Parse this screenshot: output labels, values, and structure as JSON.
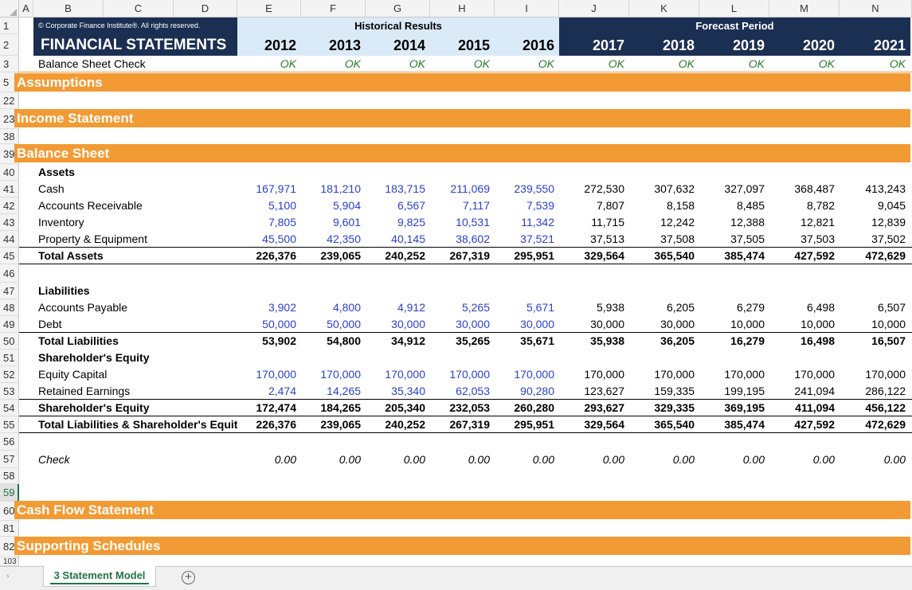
{
  "columns": [
    "A",
    "B",
    "C",
    "D",
    "E",
    "F",
    "G",
    "H",
    "I",
    "J",
    "K",
    "L",
    "M",
    "N"
  ],
  "header": {
    "copyright": "© Corporate Finance Institute®. All rights reserved.",
    "title": "FINANCIAL STATEMENTS",
    "historical_label": "Historical Results",
    "forecast_label": "Forecast Period",
    "years": [
      "2012",
      "2013",
      "2014",
      "2015",
      "2016",
      "2017",
      "2018",
      "2019",
      "2020",
      "2021"
    ]
  },
  "check_row": {
    "label": "Balance Sheet Check",
    "values": [
      "OK",
      "OK",
      "OK",
      "OK",
      "OK",
      "OK",
      "OK",
      "OK",
      "OK",
      "OK"
    ]
  },
  "sections": {
    "assumptions": "Assumptions",
    "income": "Income Statement",
    "balance": "Balance Sheet",
    "cashflow": "Cash Flow Statement",
    "supporting": "Supporting Schedules"
  },
  "row_numbers": {
    "r1": "1",
    "r2": "2",
    "r3": "3",
    "r5": "5",
    "r22": "22",
    "r23": "23",
    "r38": "38",
    "r39": "39",
    "r40": "40",
    "r41": "41",
    "r42": "42",
    "r43": "43",
    "r44": "44",
    "r45": "45",
    "r46": "46",
    "r47": "47",
    "r48": "48",
    "r49": "49",
    "r50": "50",
    "r51": "51",
    "r52": "52",
    "r53": "53",
    "r54": "54",
    "r55": "55",
    "r56": "56",
    "r57": "57",
    "r58": "58",
    "r59": "59",
    "r60": "60",
    "r81": "81",
    "r82": "82",
    "r103": "103"
  },
  "balance_sheet": {
    "assets_label": "Assets",
    "cash": {
      "label": "Cash",
      "values": [
        "167,971",
        "181,210",
        "183,715",
        "211,069",
        "239,550",
        "272,530",
        "307,632",
        "327,097",
        "368,487",
        "413,243"
      ]
    },
    "ar": {
      "label": "Accounts Receivable",
      "values": [
        "5,100",
        "5,904",
        "6,567",
        "7,117",
        "7,539",
        "7,807",
        "8,158",
        "8,485",
        "8,782",
        "9,045"
      ]
    },
    "inventory": {
      "label": "Inventory",
      "values": [
        "7,805",
        "9,601",
        "9,825",
        "10,531",
        "11,342",
        "11,715",
        "12,242",
        "12,388",
        "12,821",
        "12,839"
      ]
    },
    "ppe": {
      "label": "Property & Equipment",
      "values": [
        "45,500",
        "42,350",
        "40,145",
        "38,602",
        "37,521",
        "37,513",
        "37,508",
        "37,505",
        "37,503",
        "37,502"
      ]
    },
    "total_assets": {
      "label": "Total Assets",
      "values": [
        "226,376",
        "239,065",
        "240,252",
        "267,319",
        "295,951",
        "329,564",
        "365,540",
        "385,474",
        "427,592",
        "472,629"
      ]
    },
    "liabilities_label": "Liabilities",
    "ap": {
      "label": "Accounts Payable",
      "values": [
        "3,902",
        "4,800",
        "4,912",
        "5,265",
        "5,671",
        "5,938",
        "6,205",
        "6,279",
        "6,498",
        "6,507"
      ]
    },
    "debt": {
      "label": "Debt",
      "values": [
        "50,000",
        "50,000",
        "30,000",
        "30,000",
        "30,000",
        "30,000",
        "30,000",
        "10,000",
        "10,000",
        "10,000"
      ]
    },
    "total_liabilities": {
      "label": "Total Liabilities",
      "values": [
        "53,902",
        "54,800",
        "34,912",
        "35,265",
        "35,671",
        "35,938",
        "36,205",
        "16,279",
        "16,498",
        "16,507"
      ]
    },
    "equity_label": "Shareholder's Equity",
    "equity_capital": {
      "label": "Equity Capital",
      "values": [
        "170,000",
        "170,000",
        "170,000",
        "170,000",
        "170,000",
        "170,000",
        "170,000",
        "170,000",
        "170,000",
        "170,000"
      ]
    },
    "retained": {
      "label": "Retained Earnings",
      "values": [
        "2,474",
        "14,265",
        "35,340",
        "62,053",
        "90,280",
        "123,627",
        "159,335",
        "199,195",
        "241,094",
        "286,122"
      ]
    },
    "total_equity": {
      "label": "Shareholder's Equity",
      "values": [
        "172,474",
        "184,265",
        "205,340",
        "232,053",
        "260,280",
        "293,627",
        "329,335",
        "369,195",
        "411,094",
        "456,122"
      ]
    },
    "total_le": {
      "label": "Total Liabilities & Shareholder's Equity",
      "values": [
        "226,376",
        "239,065",
        "240,252",
        "267,319",
        "295,951",
        "329,564",
        "365,540",
        "385,474",
        "427,592",
        "472,629"
      ]
    },
    "check": {
      "label": "Check",
      "values": [
        "0.00",
        "0.00",
        "0.00",
        "0.00",
        "0.00",
        "0.00",
        "0.00",
        "0.00",
        "0.00",
        "0.00"
      ]
    }
  },
  "sheet_tab": "3 Statement Model",
  "add_sheet_icon": "+",
  "nav_arrow_icon": "›",
  "colors": {
    "navy": "#1b2f52",
    "light_blue": "#daeaf7",
    "orange": "#f29a34",
    "input_blue": "#2a3fce",
    "excel_green": "#217346"
  }
}
